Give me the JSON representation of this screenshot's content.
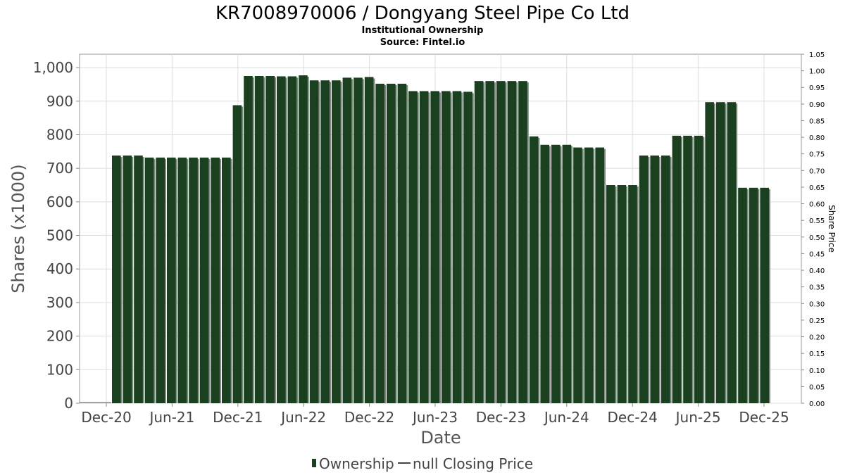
{
  "chart_data": {
    "type": "bar",
    "title": "KR7008970006 / Dongyang Steel Pipe Co Ltd",
    "subtitle": "Institutional Ownership",
    "source": "Source: Fintel.io",
    "xlabel": "Date",
    "ylabel": "Shares (x1000)",
    "ylabel_right": "Share Price",
    "ylim": [
      0,
      1040
    ],
    "ylim_right": [
      0,
      1.05
    ],
    "grid": true,
    "yticks": [
      "0",
      "100",
      "200",
      "300",
      "400",
      "500",
      "600",
      "700",
      "800",
      "900",
      "1,000"
    ],
    "yticks_right": [
      "0.00",
      "0.05",
      "0.10",
      "0.15",
      "0.20",
      "0.25",
      "0.30",
      "0.35",
      "0.40",
      "0.45",
      "0.50",
      "0.55",
      "0.60",
      "0.65",
      "0.70",
      "0.75",
      "0.80",
      "0.85",
      "0.90",
      "0.95",
      "1.00",
      "1.05"
    ],
    "xticks": [
      "Dec-20",
      "Jun-21",
      "Dec-21",
      "Jun-22",
      "Dec-22",
      "Jun-23",
      "Dec-23",
      "Jun-24",
      "Dec-24",
      "Jun-25",
      "Dec-25"
    ],
    "series": [
      {
        "name": "Ownership",
        "color": "#1a4020",
        "values": [
          738,
          738,
          738,
          732,
          732,
          732,
          732,
          732,
          732,
          732,
          732,
          888,
          975,
          975,
          975,
          974,
          974,
          977,
          962,
          962,
          962,
          970,
          970,
          972,
          952,
          952,
          952,
          930,
          930,
          930,
          930,
          930,
          928,
          960,
          960,
          960,
          960,
          960,
          795,
          770,
          770,
          770,
          762,
          762,
          762,
          650,
          650,
          650,
          738,
          738,
          738,
          797,
          797,
          797,
          897,
          897,
          897,
          642,
          642,
          642
        ]
      },
      {
        "name": "null Closing Price",
        "color": "#444444",
        "values": []
      }
    ]
  },
  "legend": {
    "ownership_label": "Ownership",
    "price_label": "null Closing Price",
    "ownership_color": "#1a4020",
    "price_color": "#444444"
  }
}
